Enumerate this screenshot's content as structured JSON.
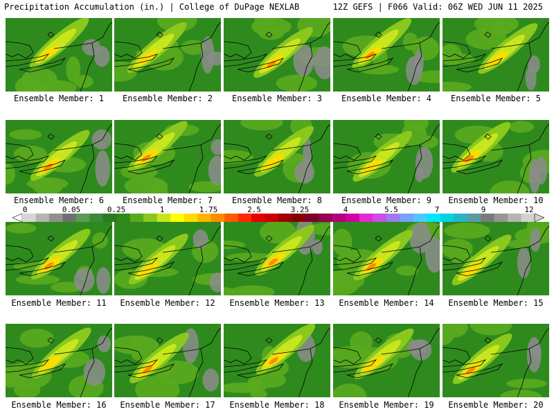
{
  "header": {
    "left_title": "Precipitation Accumulation (in.) | College of DuPage NEXLAB",
    "right_title": "12Z GEFS | F066 Valid: 06Z WED JUN 11 2025"
  },
  "colorbar": {
    "labels": [
      "0",
      "0.05",
      "0.25",
      "1",
      "1.75",
      "2.5",
      "3.25",
      "4",
      "5.5",
      "7",
      "9",
      "12"
    ],
    "colors": [
      "#d6d6d6",
      "#b4b4b4",
      "#909090",
      "#707070",
      "#5a9a5a",
      "#3a8a3a",
      "#2a7a1e",
      "#2f8a1e",
      "#5aaa1e",
      "#8ac81e",
      "#c8e61e",
      "#ffff00",
      "#ffdc00",
      "#ffb400",
      "#ff8c00",
      "#ff5a00",
      "#ff2800",
      "#e60000",
      "#c80000",
      "#a00000",
      "#820000",
      "#7a0028",
      "#960050",
      "#b4007a",
      "#d200a0",
      "#e628d2",
      "#c850e6",
      "#a078f0",
      "#78a0ff",
      "#50c8ff",
      "#00e6ff",
      "#00d2e6",
      "#28b4c8",
      "#5a9aa0",
      "#7a7a7a",
      "#969696",
      "#b4b4b4",
      "#d2d2d2"
    ]
  },
  "panels": [
    {
      "label": "Ensemble Member: 1"
    },
    {
      "label": "Ensemble Member: 2"
    },
    {
      "label": "Ensemble Member: 3"
    },
    {
      "label": "Ensemble Member: 4"
    },
    {
      "label": "Ensemble Member: 5"
    },
    {
      "label": "Ensemble Member: 6"
    },
    {
      "label": "Ensemble Member: 7"
    },
    {
      "label": "Ensemble Member: 8"
    },
    {
      "label": "Ensemble Member: 9"
    },
    {
      "label": "Ensemble Member: 10"
    },
    {
      "label": "Ensemble Member: 11"
    },
    {
      "label": "Ensemble Member: 12"
    },
    {
      "label": "Ensemble Member: 13"
    },
    {
      "label": "Ensemble Member: 14"
    },
    {
      "label": "Ensemble Member: 15"
    },
    {
      "label": "Ensemble Member: 16"
    },
    {
      "label": "Ensemble Member: 17"
    },
    {
      "label": "Ensemble Member: 18"
    },
    {
      "label": "Ensemble Member: 19"
    },
    {
      "label": "Ensemble Member: 20"
    }
  ]
}
